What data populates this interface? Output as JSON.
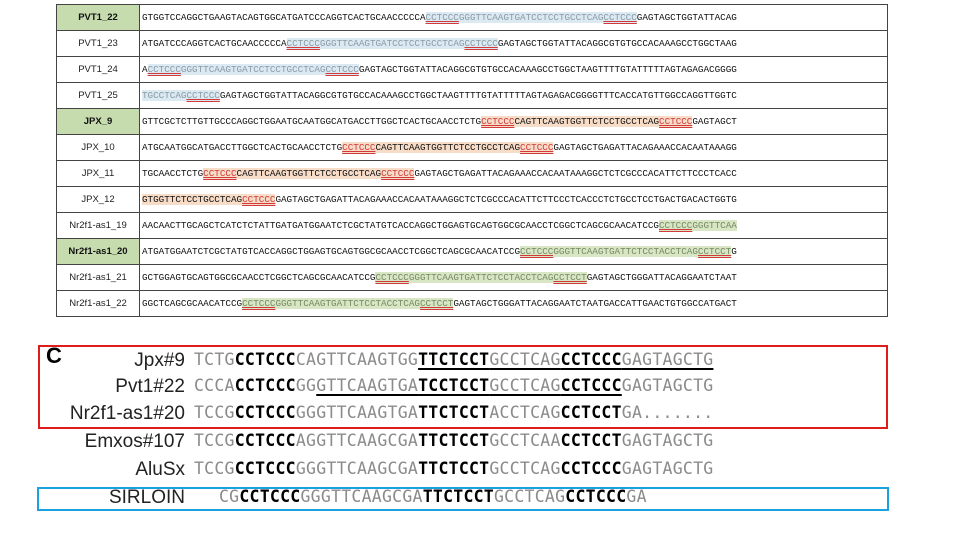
{
  "table": {
    "rows": [
      {
        "name": "PVT1_22",
        "highlight": true,
        "segments": [
          {
            "t": "GTGGTCCAGGCTGAAGTACAGTGGCATGATCCCAGGTCACTGCAACCCCCA",
            "c": ""
          },
          {
            "t": "CCTCCC",
            "c": "bl m"
          },
          {
            "t": "GGGTTCAAGTGATCCTCCTGCCTCAG",
            "c": "bl"
          },
          {
            "t": "CCTCCC",
            "c": "bl m"
          },
          {
            "t": "GAGTAGCTGGTATTACAG",
            "c": ""
          }
        ]
      },
      {
        "name": "PVT1_23",
        "highlight": false,
        "segments": [
          {
            "t": "ATGATCCCAGGTCACTGCAACCCCCA",
            "c": ""
          },
          {
            "t": "CCTCCC",
            "c": "bl m"
          },
          {
            "t": "GGGTTCAAGTGATCCTCCTGCCTCAG",
            "c": "bl"
          },
          {
            "t": "CCTCCC",
            "c": "bl m"
          },
          {
            "t": "GAGTAGCTGGTATTACAGGCGTGTGCCACAAAGCCTGGCTAAG",
            "c": ""
          }
        ]
      },
      {
        "name": "PVT1_24",
        "highlight": false,
        "segments": [
          {
            "t": "A",
            "c": ""
          },
          {
            "t": "CCTCCC",
            "c": "bl m"
          },
          {
            "t": "GGGTTCAAGTGATCCTCCTGCCTCAG",
            "c": "bl"
          },
          {
            "t": "CCTCCC",
            "c": "bl m"
          },
          {
            "t": "GAGTAGCTGGTATTACAGGCGTGTGCCACAAAGCCTGGCTAAGTTTTGTATTTTTAGTAGAGACGGGG",
            "c": ""
          }
        ]
      },
      {
        "name": "PVT1_25",
        "highlight": false,
        "segments": [
          {
            "t": "TGCCTCAG",
            "c": "bl"
          },
          {
            "t": "CCTCCC",
            "c": "bl m"
          },
          {
            "t": "GAGTAGCTGGTATTACAGGCGTGTGCCACAAAGCCTGGCTAAGTTTTGTATTTTTAGTAGAGACGGGGTTTCACCATGTTGGCCAGGTTGGTC",
            "c": ""
          }
        ]
      },
      {
        "name": "JPX_9",
        "highlight": true,
        "segments": [
          {
            "t": "GTTCGCTCTTGTTGCCCAGGCTGGAATGCAATGGCATGACCTTGGCTCACTGCAACCTCTG",
            "c": ""
          },
          {
            "t": "CCTCCC",
            "c": "orn m"
          },
          {
            "t": "CAGTTCAAGTGGTTCTCCTGCCTCAG",
            "c": "orn"
          },
          {
            "t": "CCTCCC",
            "c": "orn m"
          },
          {
            "t": "GAGTAGCT",
            "c": ""
          }
        ]
      },
      {
        "name": "JPX_10",
        "highlight": false,
        "segments": [
          {
            "t": "ATGCAATGGCATGACCTTGGCTCACTGCAACCTCTG",
            "c": ""
          },
          {
            "t": "CCTCCC",
            "c": "orn m"
          },
          {
            "t": "CAGTTCAAGTGGTTCTCCTGCCTCAG",
            "c": "orn"
          },
          {
            "t": "CCTCCC",
            "c": "orn m"
          },
          {
            "t": "GAGTAGCTGAGATTACAGAAACCACAATAAAGG",
            "c": ""
          }
        ]
      },
      {
        "name": "JPX_11",
        "highlight": false,
        "segments": [
          {
            "t": "TGCAACCTCTG",
            "c": ""
          },
          {
            "t": "CCTCCC",
            "c": "orn m"
          },
          {
            "t": "CAGTTCAAGTGGTTCTCCTGCCTCAG",
            "c": "orn"
          },
          {
            "t": "CCTCCC",
            "c": "orn m"
          },
          {
            "t": "GAGTAGCTGAGATTACAGAAACCACAATAAAGGCTCTCGCCCACATTCTTCCCTCACC",
            "c": ""
          }
        ]
      },
      {
        "name": "JPX_12",
        "highlight": false,
        "segments": [
          {
            "t": "GTGGTTCTCCTGCCTCAG",
            "c": "orn"
          },
          {
            "t": "CCTCCC",
            "c": "orn m"
          },
          {
            "t": "GAGTAGCTGAGATTACAGAAACCACAATAAAGGCTCTCGCCCACATTCTTCCCTCACCCTCTGCCTCCTGACTGACACTGGTG",
            "c": ""
          }
        ]
      },
      {
        "name": "Nr2f1-as1_19",
        "highlight": false,
        "segments": [
          {
            "t": "AACAACTTGCAGCTCATCTCTATTGATGATGGAATCTCGCTATGTCACCAGGCTGGAGTGCAGTGGCGCAACCTCGGCTCAGCGCAACATCCG",
            "c": ""
          },
          {
            "t": "CCTCCC",
            "c": "gr m"
          },
          {
            "t": "GGGTTCAA",
            "c": "gr"
          }
        ]
      },
      {
        "name": "Nr2f1-as1_20",
        "highlight": true,
        "segments": [
          {
            "t": "ATGATGGAATCTCGCTATGTCACCAGGCTGGAGTGCAGTGGCGCAACCTCGGCTCAGCGCAACATCCG",
            "c": ""
          },
          {
            "t": "CCTCCC",
            "c": "gr m"
          },
          {
            "t": "GGGTTCAAGTGATTCTCCTACCTCAG",
            "c": "gr"
          },
          {
            "t": "CCTCCT",
            "c": "gr m"
          },
          {
            "t": "G",
            "c": ""
          }
        ]
      },
      {
        "name": "Nr2f1-as1_21",
        "highlight": false,
        "segments": [
          {
            "t": "GCTGGAGTGCAGTGGCGCAACCTCGGCTCAGCGCAACATCCG",
            "c": ""
          },
          {
            "t": "CCTCCC",
            "c": "gr m"
          },
          {
            "t": "GGGTTCAAGTGATTCTCCTACCTCAG",
            "c": "gr"
          },
          {
            "t": "CCTCCT",
            "c": "gr m"
          },
          {
            "t": "GAGTAGCTGGGATTACAGGAATCTAAT",
            "c": ""
          }
        ]
      },
      {
        "name": "Nr2f1-as1_22",
        "highlight": false,
        "segments": [
          {
            "t": "GGCTCAGCGCAACATCCG",
            "c": ""
          },
          {
            "t": "CCTCCC",
            "c": "gr m"
          },
          {
            "t": "GGGTTCAAGTGATTCTCCTACCTCAG",
            "c": "gr"
          },
          {
            "t": "CCTCCT",
            "c": "gr m"
          },
          {
            "t": "GAGTAGCTGGGATTACAGGAATCTAATGACCATTGAACTGTGGCCATGACT",
            "c": ""
          }
        ]
      }
    ]
  },
  "panel_c": {
    "label": "C",
    "rows": [
      {
        "name": "Jpx#9",
        "parts": [
          {
            "t": "TCTG",
            "s": ""
          },
          {
            "t": "CCTCCC",
            "s": "b"
          },
          {
            "t": "CAGTTCAAGTGG",
            "s": ""
          },
          {
            "t": "TTCTCCT",
            "s": "b ul"
          },
          {
            "t": "GCCTCAG",
            "s": "ul"
          },
          {
            "t": "CCTCCC",
            "s": "b ul"
          },
          {
            "t": "GAGTAGCTG",
            "s": "ul"
          }
        ]
      },
      {
        "name": "Pvt1#22",
        "parts": [
          {
            "t": "CCCA",
            "s": ""
          },
          {
            "t": "CCTCCC",
            "s": "b"
          },
          {
            "t": "GG",
            "s": ""
          },
          {
            "t": "GTTCAAGTGA",
            "s": "ul"
          },
          {
            "t": "TCCTCCT",
            "s": "b ul"
          },
          {
            "t": "GCCTCAG",
            "s": "ul"
          },
          {
            "t": "CCTCCC",
            "s": "b ul"
          },
          {
            "t": "GAGTAGCTG",
            "s": ""
          }
        ]
      },
      {
        "name": "Nr2f1-as1#20",
        "parts": [
          {
            "t": "TCCG",
            "s": ""
          },
          {
            "t": "CCTCCC",
            "s": "b"
          },
          {
            "t": "GGGTTCAAGTGA",
            "s": ""
          },
          {
            "t": "TTCTCCT",
            "s": "b"
          },
          {
            "t": "ACCTCAG",
            "s": ""
          },
          {
            "t": "CCTCCT",
            "s": "b"
          },
          {
            "t": "GA.......",
            "s": ""
          }
        ]
      },
      {
        "name": "Emxos#107",
        "parts": [
          {
            "t": "TCCG",
            "s": ""
          },
          {
            "t": "CCTCCC",
            "s": "b"
          },
          {
            "t": "AGGTTCAAGCGA",
            "s": ""
          },
          {
            "t": "TTCTCCT",
            "s": "b"
          },
          {
            "t": "GCCTCAA",
            "s": ""
          },
          {
            "t": "CCTCCT",
            "s": "b"
          },
          {
            "t": "GAGTAGCTG",
            "s": ""
          }
        ]
      },
      {
        "name": "AluSx",
        "parts": [
          {
            "t": "TCCG",
            "s": ""
          },
          {
            "t": "CCTCCC",
            "s": "b"
          },
          {
            "t": "GGGTTCAAGCGA",
            "s": ""
          },
          {
            "t": "TTCTCCT",
            "s": "b"
          },
          {
            "t": "GCCTCAG",
            "s": ""
          },
          {
            "t": "CCTCCC",
            "s": "b"
          },
          {
            "t": "GAGTAGCTG",
            "s": ""
          }
        ]
      },
      {
        "name": "SIRLOIN",
        "parts": [
          {
            "t": "CG",
            "s": ""
          },
          {
            "t": "CCTCCC",
            "s": "b"
          },
          {
            "t": "GGGTTCAAGCGA",
            "s": ""
          },
          {
            "t": "TTCTCCT",
            "s": "b"
          },
          {
            "t": "GCCTCAG",
            "s": ""
          },
          {
            "t": "CCTCCC",
            "s": "b"
          },
          {
            "t": "GA",
            "s": ""
          }
        ]
      }
    ]
  },
  "colors": {
    "red_box": "#e01b1b",
    "blue_box": "#1aa2de",
    "highlight_green": "#c6dcae",
    "motif_red": "#d03a3a"
  }
}
